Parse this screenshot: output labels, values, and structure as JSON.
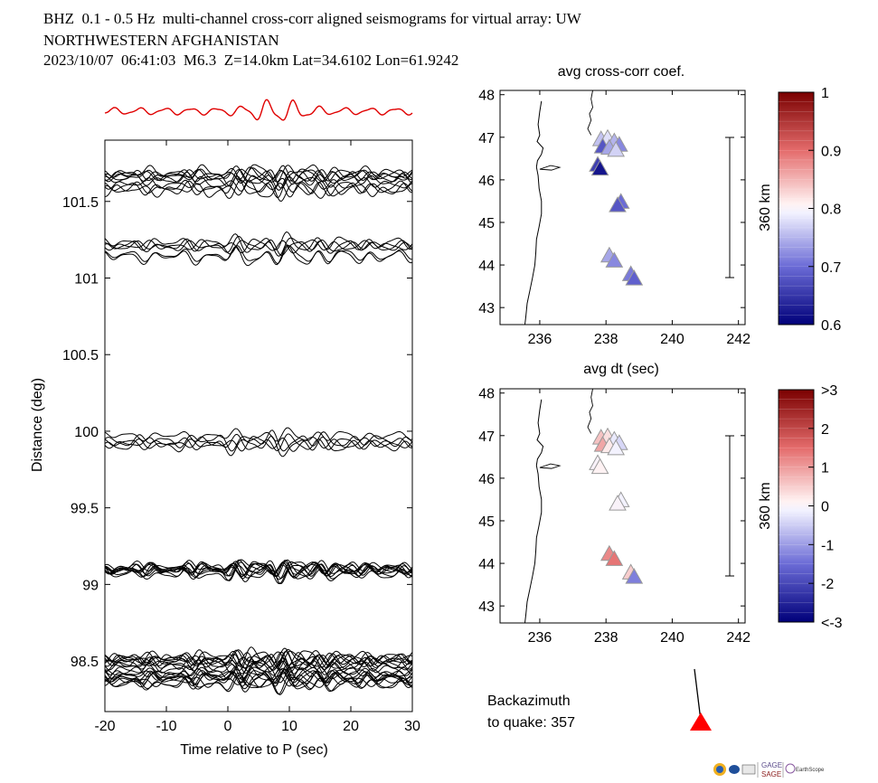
{
  "header": {
    "line1": "BHZ  0.1 - 0.5 Hz  multi-channel cross-corr aligned seismograms for virtual array: UW",
    "line2": "NORTHWESTERN AFGHANISTAN",
    "line3": "2023/10/07  06:41:03  M6.3  Z=14.0km Lat=34.6102 Lon=61.9242"
  },
  "chart_data": [
    {
      "type": "line",
      "name": "seismogram-section",
      "xlabel": "Time relative to P (sec)",
      "ylabel": "Distance (deg)",
      "xlim": [
        -20,
        30
      ],
      "ylim": [
        98.17,
        101.9
      ],
      "xticks": [
        -20,
        -10,
        0,
        10,
        20,
        30
      ],
      "yticks": [
        98.5,
        99,
        99.5,
        100,
        100.5,
        101,
        101.5
      ],
      "trace_groups": [
        {
          "distance": 101.62,
          "count": 10,
          "spread": 0.14
        },
        {
          "distance": 101.17,
          "count": 6,
          "spread": 0.12
        },
        {
          "distance": 99.93,
          "count": 5,
          "spread": 0.09
        },
        {
          "distance": 99.09,
          "count": 10,
          "spread": 0.05
        },
        {
          "distance": 98.45,
          "count": 20,
          "spread": 0.2
        }
      ],
      "stack_color": "#e00000",
      "trace_color": "#000000"
    },
    {
      "type": "scatter",
      "name": "avg-cross-corr-map",
      "title": "avg cross-corr coef.",
      "xlim": [
        234.8,
        242.2
      ],
      "ylim": [
        42.6,
        48.1
      ],
      "xticks": [
        236,
        238,
        240,
        242
      ],
      "yticks": [
        43,
        44,
        45,
        46,
        47,
        48
      ],
      "scale_label": "360 km",
      "colorbar": {
        "min": 0.6,
        "max": 1,
        "ticks": [
          "0.6",
          "0.7",
          "0.8",
          "0.9",
          "1"
        ]
      },
      "stations": [
        {
          "lon": 237.85,
          "lat": 46.95,
          "value": 0.76
        },
        {
          "lon": 238.05,
          "lat": 46.98,
          "value": 0.78
        },
        {
          "lon": 238.25,
          "lat": 46.9,
          "value": 0.75
        },
        {
          "lon": 238.4,
          "lat": 46.82,
          "value": 0.72
        },
        {
          "lon": 237.9,
          "lat": 46.78,
          "value": 0.68
        },
        {
          "lon": 238.1,
          "lat": 46.75,
          "value": 0.74
        },
        {
          "lon": 238.3,
          "lat": 46.7,
          "value": 0.77
        },
        {
          "lon": 237.75,
          "lat": 46.35,
          "value": 0.66
        },
        {
          "lon": 237.82,
          "lat": 46.26,
          "value": 0.62
        },
        {
          "lon": 238.45,
          "lat": 45.48,
          "value": 0.7
        },
        {
          "lon": 238.35,
          "lat": 45.4,
          "value": 0.68
        },
        {
          "lon": 238.1,
          "lat": 44.22,
          "value": 0.74
        },
        {
          "lon": 238.25,
          "lat": 44.1,
          "value": 0.72
        },
        {
          "lon": 238.75,
          "lat": 43.78,
          "value": 0.71
        },
        {
          "lon": 238.85,
          "lat": 43.68,
          "value": 0.69
        }
      ]
    },
    {
      "type": "scatter",
      "name": "avg-dt-map",
      "title": "avg dt (sec)",
      "xlim": [
        234.8,
        242.2
      ],
      "ylim": [
        42.6,
        48.1
      ],
      "xticks": [
        236,
        238,
        240,
        242
      ],
      "yticks": [
        43,
        44,
        45,
        46,
        47,
        48
      ],
      "scale_label": "360 km",
      "colorbar": {
        "min": -3,
        "max": 3,
        "ticks": [
          "<-3",
          "-2",
          "-1",
          "0",
          "1",
          "2",
          ">3"
        ]
      },
      "stations": [
        {
          "lon": 237.85,
          "lat": 46.95,
          "value": 0.6
        },
        {
          "lon": 238.05,
          "lat": 46.98,
          "value": 0.3
        },
        {
          "lon": 238.25,
          "lat": 46.9,
          "value": -0.2
        },
        {
          "lon": 238.4,
          "lat": 46.82,
          "value": -0.4
        },
        {
          "lon": 237.9,
          "lat": 46.78,
          "value": 0.9
        },
        {
          "lon": 238.1,
          "lat": 46.75,
          "value": 0.2
        },
        {
          "lon": 238.3,
          "lat": 46.7,
          "value": -0.1
        },
        {
          "lon": 237.75,
          "lat": 46.35,
          "value": 0.0
        },
        {
          "lon": 237.82,
          "lat": 46.26,
          "value": 0.1
        },
        {
          "lon": 238.45,
          "lat": 45.48,
          "value": -0.1
        },
        {
          "lon": 238.35,
          "lat": 45.4,
          "value": 0.0
        },
        {
          "lon": 238.1,
          "lat": 44.22,
          "value": 1.2
        },
        {
          "lon": 238.25,
          "lat": 44.1,
          "value": 1.4
        },
        {
          "lon": 238.75,
          "lat": 43.78,
          "value": 0.5
        },
        {
          "lon": 238.85,
          "lat": 43.68,
          "value": -1.3
        }
      ]
    }
  ],
  "backazimuth": {
    "label_line1": "Backazimuth",
    "label_line2": "to quake:  357",
    "value": 357,
    "marker_color": "#ff0000"
  },
  "logos": {
    "gage": "GAGE",
    "sage": "SAGE",
    "earthscope": "EarthScope"
  }
}
